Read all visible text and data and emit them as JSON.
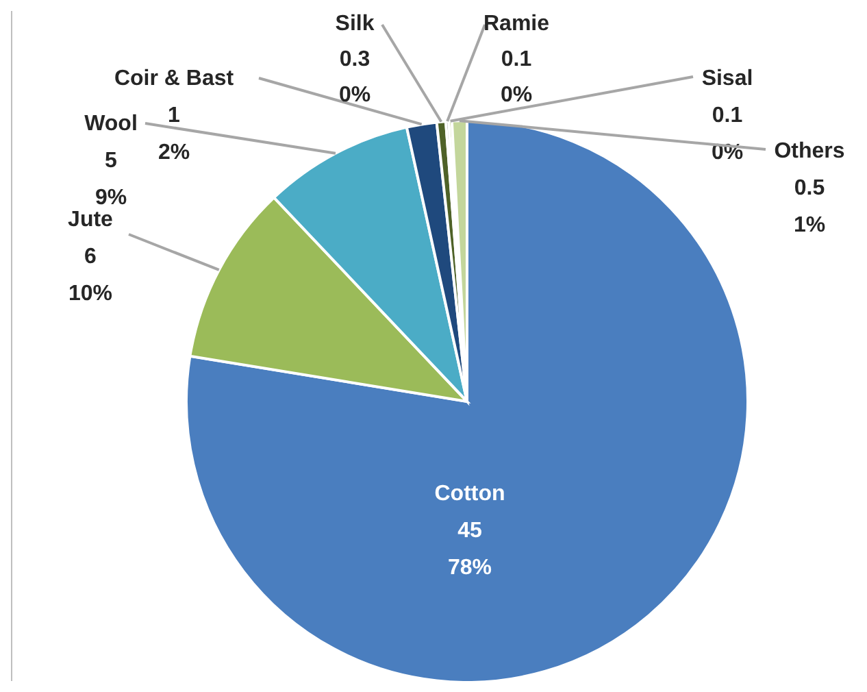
{
  "chart_data": {
    "type": "pie",
    "categories": [
      "Cotton",
      "Jute",
      "Wool",
      "Coir & Bast",
      "Silk",
      "Ramie",
      "Sisal",
      "Others"
    ],
    "values": [
      45,
      6,
      5,
      1,
      0.3,
      0.1,
      0.1,
      0.5
    ],
    "value_labels": [
      "45\n78%",
      "6\n10%",
      "5\n9%",
      "1\n2%",
      "0.3\n0%",
      "0.1\n0%",
      "0.1\n0%",
      "0.5\n1%"
    ],
    "colors": [
      "#4a7ebf",
      "#9bbb59",
      "#4bacc6",
      "#1f497d",
      "#4f6228",
      "#7f7f7f",
      "#9bbb59",
      "#c3d69b"
    ],
    "legend": false
  }
}
